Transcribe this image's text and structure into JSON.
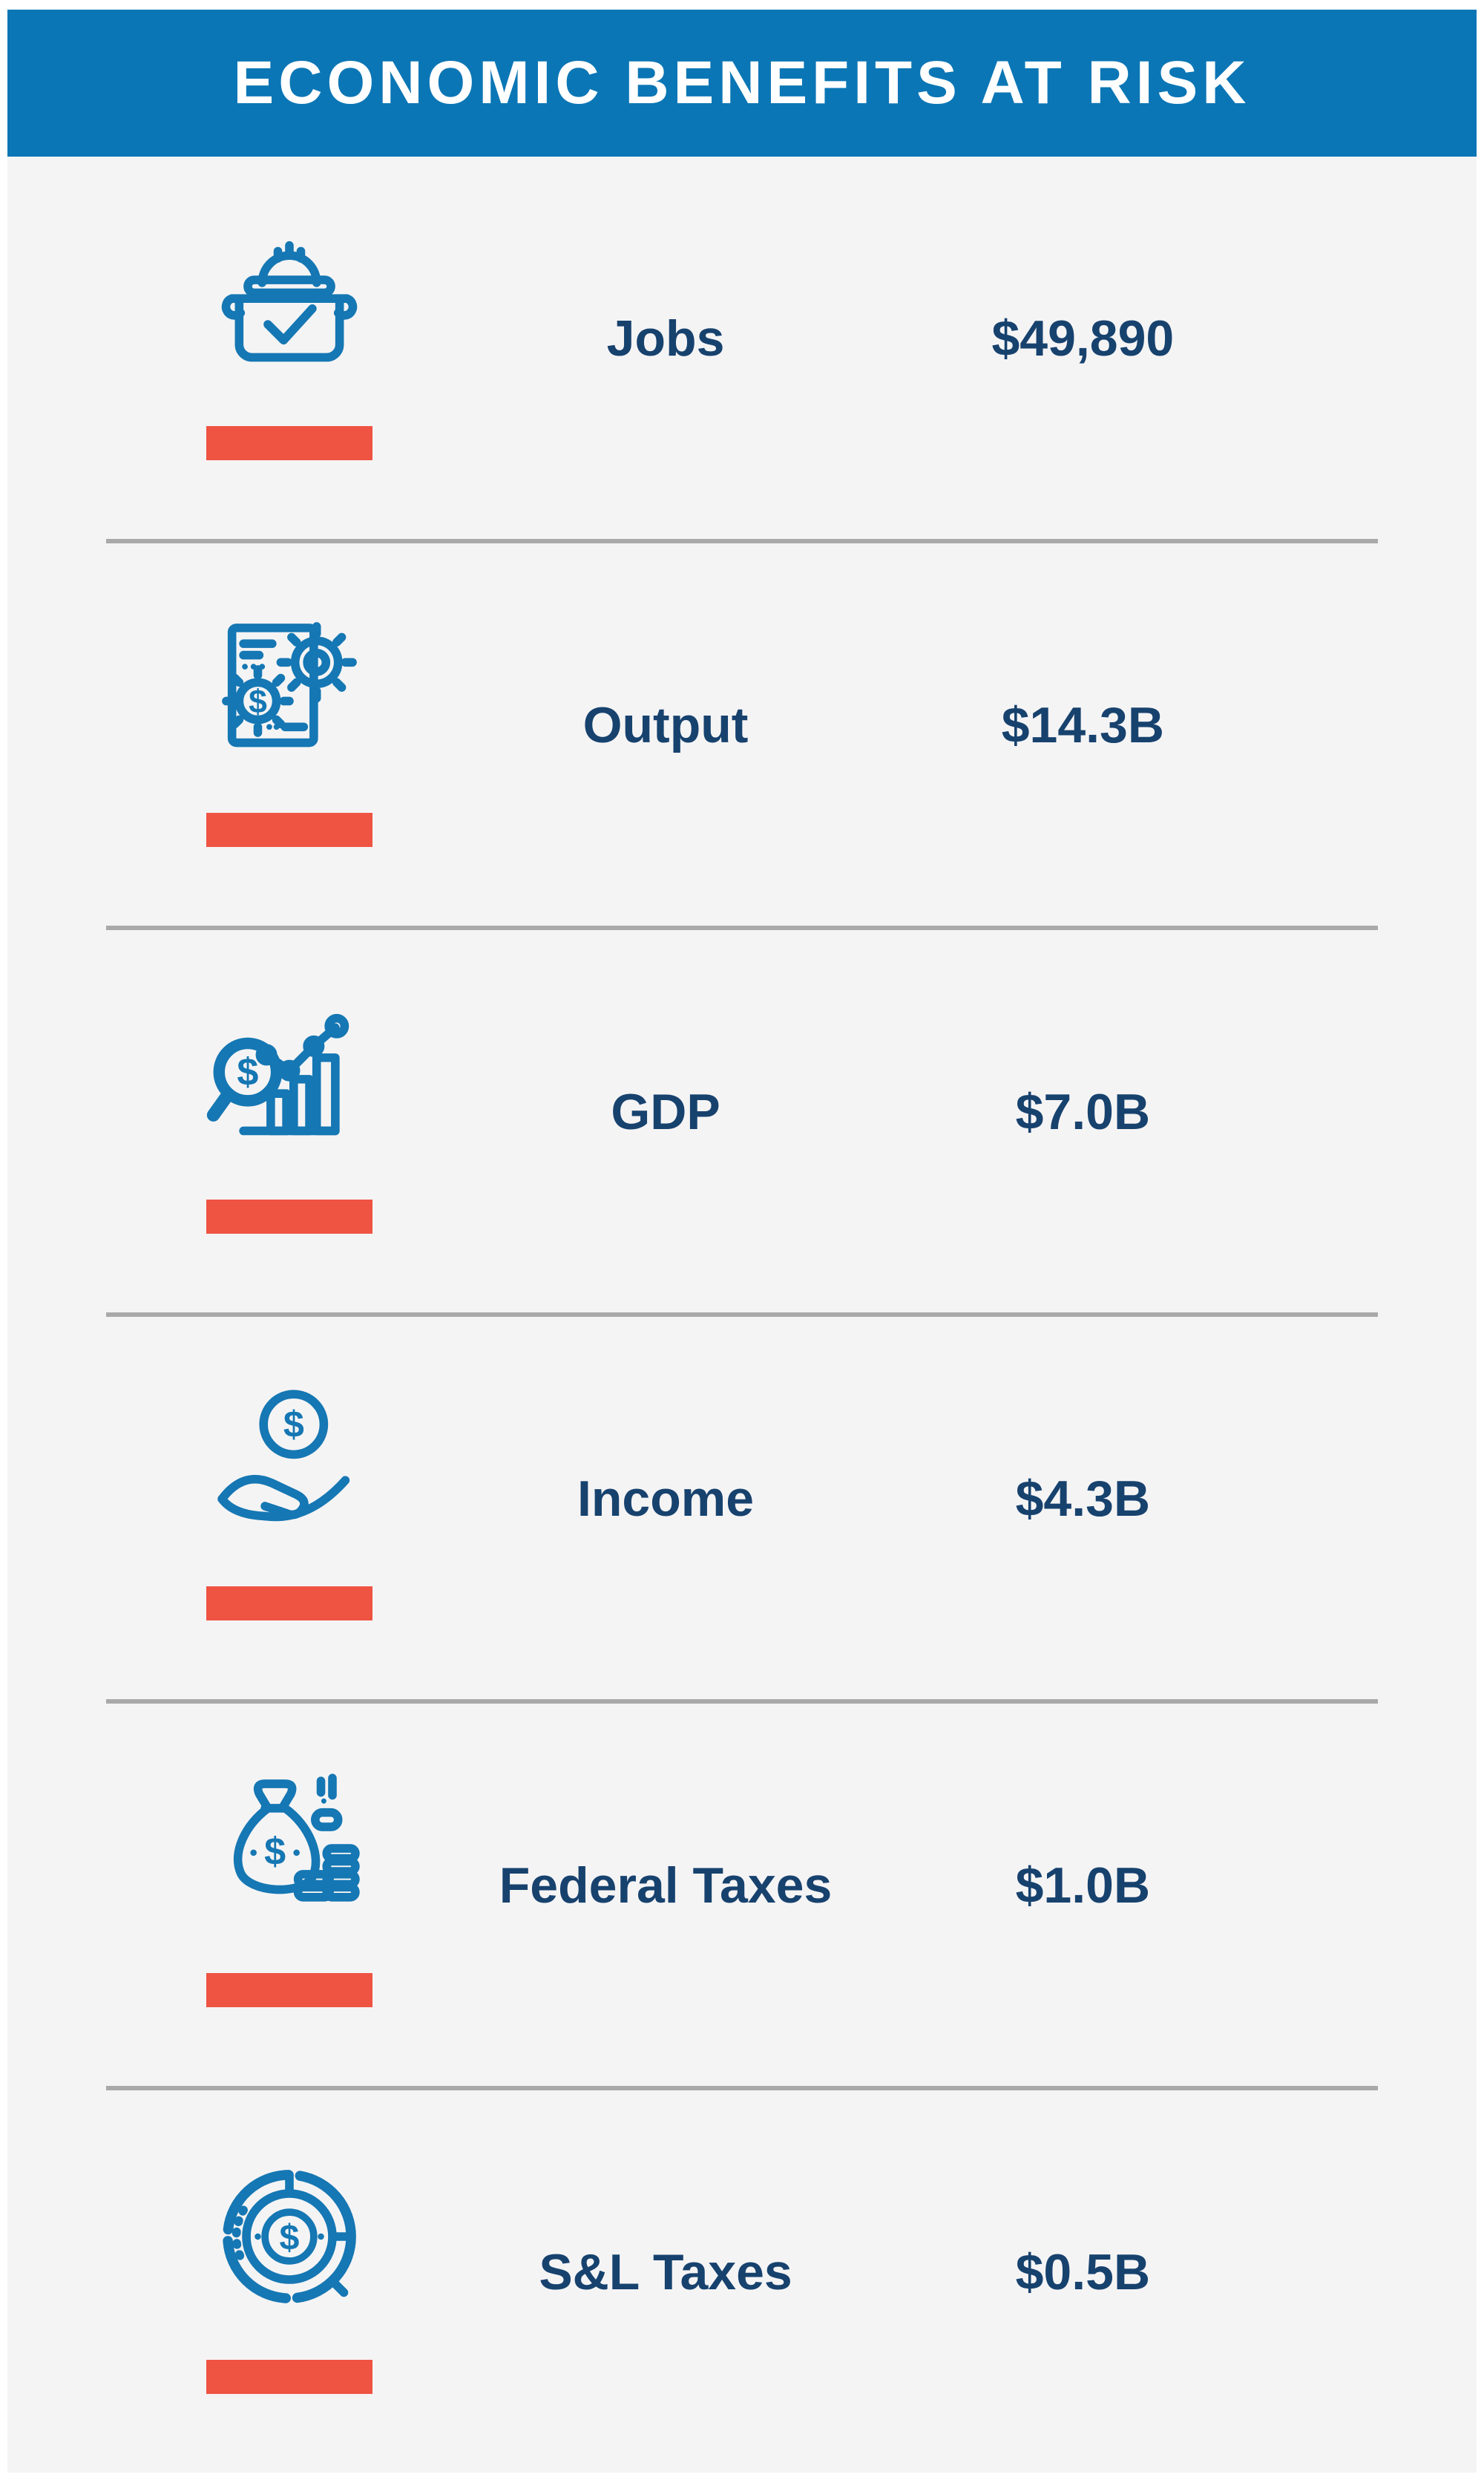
{
  "header": {
    "title": "ECONOMIC BENEFITS AT RISK",
    "background_color": "#0b76b5",
    "text_color": "#ffffff"
  },
  "colors": {
    "icon_blue": "#1577b3",
    "text_navy": "#17426e",
    "accent_red": "#ef5342",
    "body_background": "#f5f4f5",
    "divider_gray": "#a9a9a9"
  },
  "rows": [
    {
      "icon": "hardhat-toolbox-icon",
      "label": "Jobs",
      "value": "$49,890"
    },
    {
      "icon": "document-gears-icon",
      "label": "Output",
      "value": "$14.3B"
    },
    {
      "icon": "magnifier-bar-chart-icon",
      "label": "GDP",
      "value": "$7.0B"
    },
    {
      "icon": "hand-coin-icon",
      "label": "Income",
      "value": "$4.3B"
    },
    {
      "icon": "money-bag-coins-icon",
      "label": "Federal Taxes",
      "value": "$1.0B"
    },
    {
      "icon": "donut-chart-coin-icon",
      "label": "S&L Taxes",
      "value": "$0.5B"
    }
  ],
  "chart_data": {
    "type": "table",
    "title": "ECONOMIC BENEFITS AT RISK",
    "categories": [
      "Jobs",
      "Output",
      "GDP",
      "Income",
      "Federal Taxes",
      "S&L Taxes"
    ],
    "values": [
      "$49,890",
      "$14.3B",
      "$7.0B",
      "$4.3B",
      "$1.0B",
      "$0.5B"
    ],
    "legend_position": "none",
    "grid": false
  }
}
